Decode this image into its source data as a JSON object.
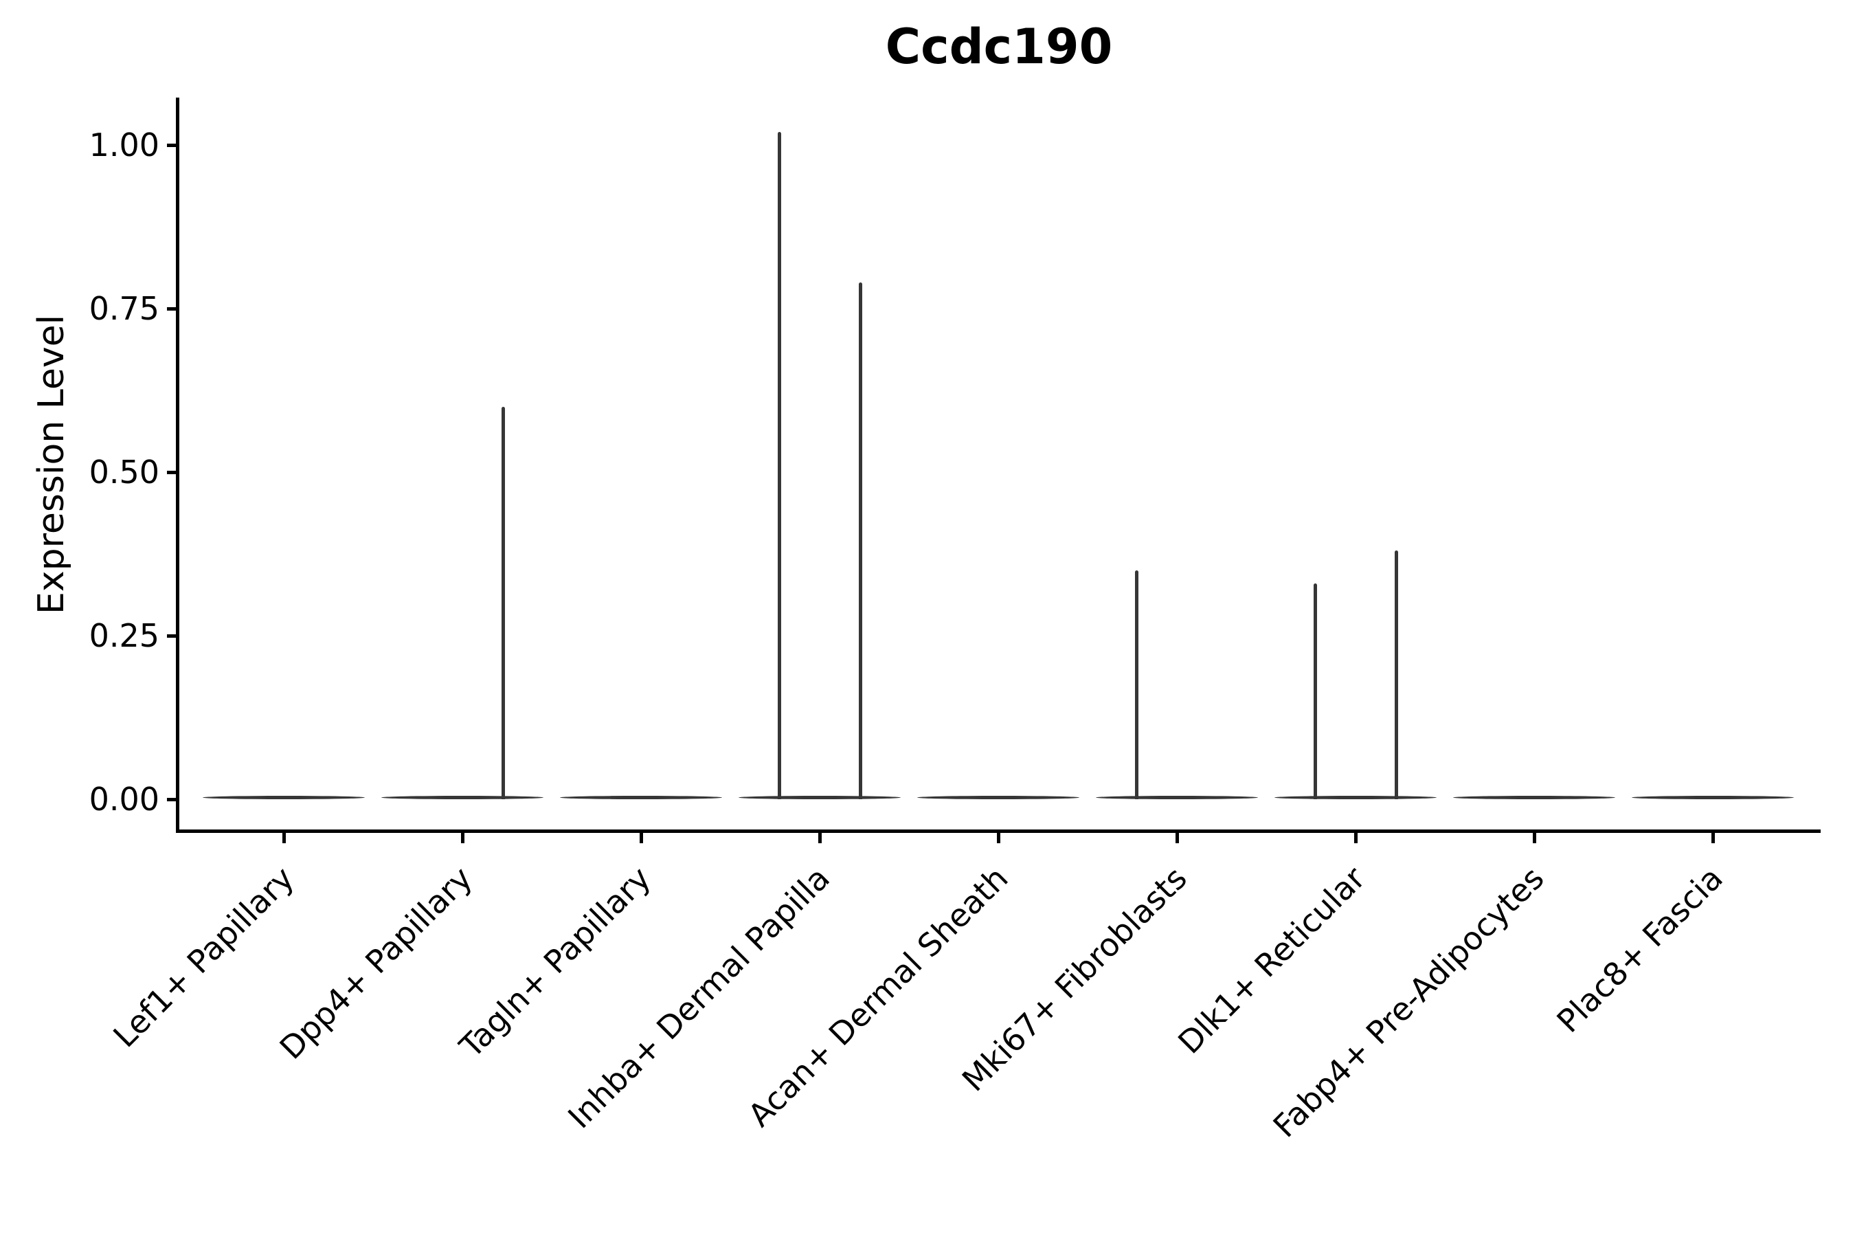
{
  "chart_data": {
    "type": "violin",
    "title": "Ccdc190",
    "ylabel": "Expression Level",
    "xlabel": "",
    "ylim": [
      -0.05,
      1.07
    ],
    "grid": false,
    "legend": "none",
    "yticks": [
      0.0,
      0.25,
      0.5,
      0.75,
      1.0
    ],
    "ytick_labels": [
      "0.00",
      "0.25",
      "0.50",
      "0.75",
      "1.00"
    ],
    "categories": [
      "Lef1+ Papillary",
      "Dpp4+ Papillary",
      "Tagln+ Papillary",
      "Inhba+ Dermal Papilla",
      "Acan+ Dermal Sheath",
      "Mki67+ Fibroblasts",
      "Dlk1+ Reticular",
      "Fabp4+ Pre-Adipocytes",
      "Plac8+ Fascia"
    ],
    "violins": [
      {
        "category": "Lef1+ Papillary",
        "baseline_value": 0,
        "spikes": []
      },
      {
        "category": "Dpp4+ Papillary",
        "baseline_value": 0,
        "spikes": [
          {
            "side": "right",
            "max_value": 0.6
          }
        ]
      },
      {
        "category": "Tagln+ Papillary",
        "baseline_value": 0,
        "spikes": []
      },
      {
        "category": "Inhba+ Dermal Papilla",
        "baseline_value": 0,
        "spikes": [
          {
            "side": "left",
            "max_value": 1.02
          },
          {
            "side": "right",
            "max_value": 0.79
          }
        ]
      },
      {
        "category": "Acan+ Dermal Sheath",
        "baseline_value": 0,
        "spikes": []
      },
      {
        "category": "Mki67+ Fibroblasts",
        "baseline_value": 0,
        "spikes": [
          {
            "side": "left",
            "max_value": 0.35
          }
        ]
      },
      {
        "category": "Dlk1+ Reticular",
        "baseline_value": 0,
        "spikes": [
          {
            "side": "left",
            "max_value": 0.33
          },
          {
            "side": "right",
            "max_value": 0.38
          }
        ]
      },
      {
        "category": "Fabp4+ Pre-Adipocytes",
        "baseline_value": 0,
        "spikes": []
      },
      {
        "category": "Plac8+ Fascia",
        "baseline_value": 0,
        "spikes": []
      }
    ],
    "colors": {
      "violin_stroke": "#363636",
      "axis": "#000000",
      "text": "#000000",
      "background": "#ffffff"
    }
  }
}
